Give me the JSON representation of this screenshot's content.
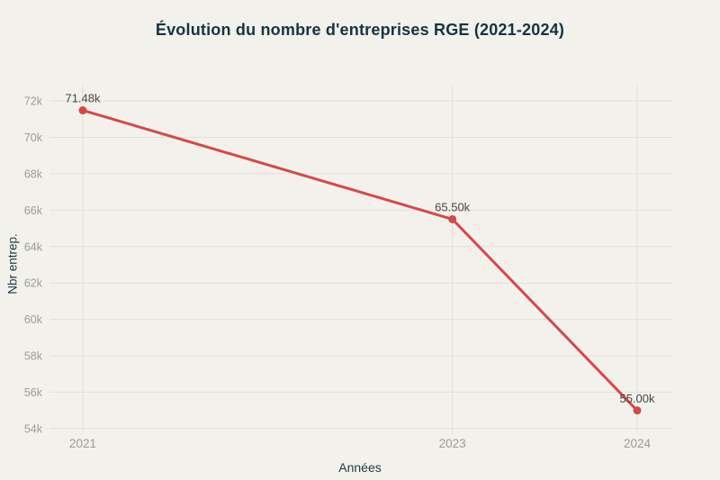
{
  "page": {
    "background": "#f2f1ec"
  },
  "chart_data": {
    "type": "line",
    "title": "Évolution du nombre d'entreprises RGE (2021-2024)",
    "xlabel": "Années",
    "ylabel": "Nbr entrep.",
    "series": [
      {
        "name": "Nbr entrep.",
        "x": [
          2021,
          2023,
          2024
        ],
        "values": [
          71480,
          65500,
          55000
        ],
        "point_labels": [
          "71.48k",
          "65.50k",
          "55.00k"
        ]
      }
    ],
    "x_ticks": [
      {
        "value": 2021,
        "label": "2021"
      },
      {
        "value": 2023,
        "label": "2023"
      },
      {
        "value": 2024,
        "label": "2024"
      }
    ],
    "y_ticks": [
      {
        "value": 54000,
        "label": "54k"
      },
      {
        "value": 56000,
        "label": "56k"
      },
      {
        "value": 58000,
        "label": "58k"
      },
      {
        "value": 60000,
        "label": "60k"
      },
      {
        "value": 62000,
        "label": "62k"
      },
      {
        "value": 64000,
        "label": "64k"
      },
      {
        "value": 66000,
        "label": "66k"
      },
      {
        "value": 68000,
        "label": "68k"
      },
      {
        "value": 70000,
        "label": "70k"
      },
      {
        "value": 72000,
        "label": "72k"
      }
    ],
    "xlim": [
      2021,
      2024
    ],
    "ylim": [
      54000,
      72000
    ],
    "grid": true,
    "legend": "none",
    "colors": {
      "background": "#f2f1ec",
      "line": "#d5494c",
      "point": "#d5494c",
      "grid": "#e2e0da",
      "tick_text": "#9b9b97",
      "title_text": "#16343c",
      "axis_label_text": "#1d3b43",
      "point_label_text": "#474747"
    }
  }
}
